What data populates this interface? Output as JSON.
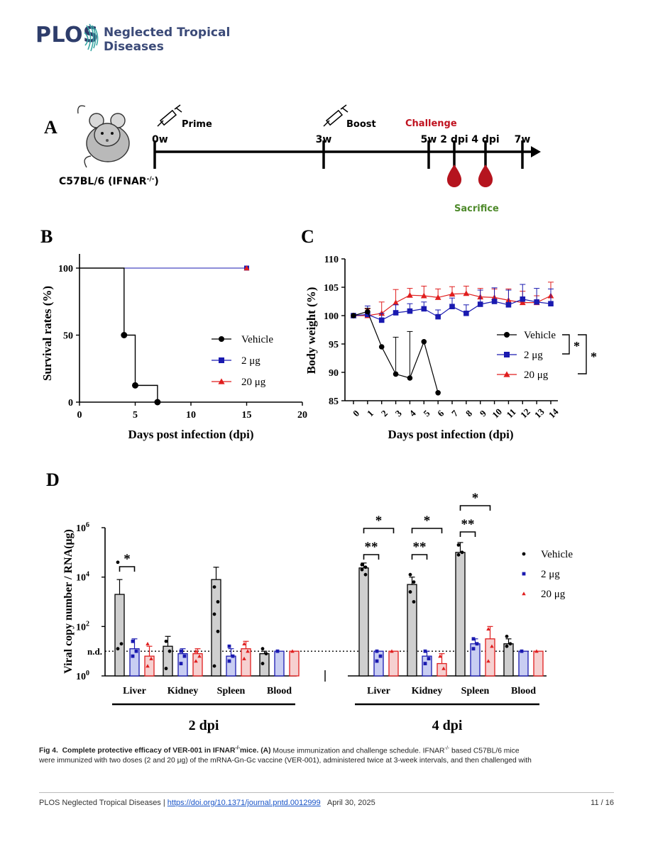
{
  "header": {
    "logo_text": "PLOS",
    "journal_line1": "Neglected Tropical",
    "journal_line2": "Diseases"
  },
  "panelA": {
    "label": "A",
    "mouse_label": "C57BL/6 (IFNAR",
    "mouse_label_sup": "-/-",
    "mouse_label_close": ")",
    "events": [
      {
        "time": "0w",
        "label": "Prime"
      },
      {
        "time": "3w",
        "label": "Boost"
      },
      {
        "time": "5w",
        "label": ""
      },
      {
        "time": "2 dpi",
        "label": ""
      },
      {
        "time": "4 dpi",
        "label": ""
      },
      {
        "time": "7w",
        "label": ""
      }
    ],
    "challenge_label": "Challenge",
    "sacrifice_label": "Sacrifice",
    "colors": {
      "challenge": "#c0121f",
      "sacrifice": "#4e8a2b",
      "drop": "#b5141e"
    }
  },
  "panelB": {
    "label": "B",
    "chart_data": {
      "type": "line",
      "xlabel": "Days post infection (dpi)",
      "ylabel": "Survival rates (%)",
      "xlim": [
        0,
        20
      ],
      "ylim": [
        0,
        100
      ],
      "xticks": [
        "0",
        "5",
        "10",
        "15",
        "20"
      ],
      "yticks": [
        "0",
        "50",
        "100"
      ],
      "series": [
        {
          "name": "Vehicle",
          "color": "#000000",
          "marker": "circle",
          "x": [
            0,
            4,
            4,
            5,
            5,
            7,
            7
          ],
          "y": [
            100,
            100,
            50,
            50,
            12.5,
            12.5,
            0
          ],
          "points_x": [
            4,
            5,
            7
          ],
          "points_y": [
            50,
            12.5,
            0
          ]
        },
        {
          "name": "2 μg",
          "color": "#1a1ab0",
          "marker": "square",
          "x": [
            0,
            15
          ],
          "y": [
            100,
            100
          ],
          "points_x": [
            15
          ],
          "points_y": [
            100
          ]
        },
        {
          "name": "20 μg",
          "color": "#e01e1e",
          "marker": "triangle",
          "x": [
            0,
            15
          ],
          "y": [
            100,
            100
          ],
          "points_x": [
            15
          ],
          "points_y": [
            100
          ]
        }
      ],
      "legend_position": "right"
    }
  },
  "panelC": {
    "label": "C",
    "chart_data": {
      "type": "line",
      "xlabel": "Days post infection (dpi)",
      "ylabel": "Body weight (%)",
      "ylim": [
        85,
        110
      ],
      "yticks": [
        "85",
        "90",
        "95",
        "100",
        "105",
        "110"
      ],
      "categories": [
        "0",
        "1",
        "2",
        "3",
        "4",
        "5",
        "6",
        "7",
        "8",
        "9",
        "10",
        "11",
        "12",
        "13",
        "14"
      ],
      "series": [
        {
          "name": "Vehicle",
          "color": "#000000",
          "marker": "circle",
          "x": [
            0,
            1,
            2,
            3,
            4,
            5,
            6
          ],
          "y": [
            100,
            100.7,
            94.5,
            89.7,
            89,
            95.4,
            86.4
          ],
          "err": [
            0,
            0.6,
            0,
            6.5,
            8.2,
            0,
            0
          ]
        },
        {
          "name": "2 μg",
          "color": "#1a1ab0",
          "marker": "square",
          "x": [
            0,
            1,
            2,
            3,
            4,
            5,
            6,
            7,
            8,
            9,
            10,
            11,
            12,
            13,
            14
          ],
          "y": [
            100,
            100.2,
            99.2,
            100.5,
            100.8,
            101.2,
            99.8,
            101.6,
            100.4,
            102,
            102.5,
            101.9,
            102.9,
            102.4,
            102.1
          ],
          "err": [
            0,
            1.5,
            1.2,
            1.4,
            1.3,
            1.2,
            1.2,
            1.5,
            1.5,
            2.5,
            2.4,
            2.6,
            2.6,
            2.4,
            2.6
          ]
        },
        {
          "name": "20 μg",
          "color": "#e01e1e",
          "marker": "triangle",
          "x": [
            0,
            1,
            2,
            3,
            4,
            5,
            6,
            7,
            8,
            9,
            10,
            11,
            12,
            13,
            14
          ],
          "y": [
            100,
            100,
            100.4,
            102.3,
            103.6,
            103.5,
            103.2,
            103.8,
            103.9,
            103.3,
            103.2,
            102.7,
            102.3,
            102.3,
            103.5
          ],
          "err": [
            0,
            1.2,
            2.0,
            2.3,
            1.2,
            1.7,
            1.5,
            1.3,
            1.3,
            1.5,
            1.5,
            2.0,
            2.0,
            1.2,
            2.4
          ]
        }
      ],
      "significance": [
        "*",
        "*"
      ],
      "legend_position": "right"
    }
  },
  "panelD": {
    "label": "D",
    "chart_data": {
      "type": "bar",
      "ylabel": "Viral copy number / RNA(μg)",
      "ylog": true,
      "ylim_exp": [
        0,
        6
      ],
      "yticks": [
        {
          "exp": 0,
          "label": "10",
          "sup": "0"
        },
        {
          "exp": 2,
          "label": "10",
          "sup": "2"
        },
        {
          "exp": 4,
          "label": "10",
          "sup": "4"
        },
        {
          "exp": 6,
          "label": "10",
          "sup": "6"
        }
      ],
      "nd_label": "n.d.",
      "nd_exp": 1.0,
      "groups": [
        {
          "timepoint": "2 dpi",
          "tissues": [
            {
              "name": "Liver",
              "values": [
                3.3,
                1.1,
                0.8
              ],
              "err": [
                0.6,
                0.4,
                0.4
              ],
              "pts": [
                [
                  4.6,
                  1.3,
                  1.1
                ],
                [
                  1.4,
                  1.0,
                  0.8
                ],
                [
                  1.3,
                  0.7,
                  0.4
                ]
              ]
            },
            {
              "name": "Kidney",
              "values": [
                1.2,
                0.9,
                0.9
              ],
              "err": [
                0.4,
                0.2,
                0.2
              ],
              "pts": [
                [
                  1.4,
                  1.0,
                  0.3
                ],
                [
                  1.0,
                  0.8,
                  0.5
                ],
                [
                  1.0,
                  0.8,
                  0.6
                ]
              ]
            },
            {
              "name": "Spleen",
              "values": [
                3.9,
                0.8,
                1.1
              ],
              "err": [
                0.5,
                0.3,
                0.3
              ],
              "pts": [
                [
                  3.6,
                  3.0,
                  2.5,
                  1.8,
                  0.4
                ],
                [
                  1.2,
                  0.8,
                  0.6
                ],
                [
                  1.3,
                  1.0,
                  0.7
                ]
              ]
            },
            {
              "name": "Blood",
              "values": [
                0.9,
                1.0,
                1.0
              ],
              "err": [
                0.1,
                0,
                0
              ],
              "pts": [
                [
                  1.1,
                  0.9,
                  0.5
                ],
                [
                  1.0
                ],
                [
                  1.0
                ]
              ]
            }
          ]
        },
        {
          "timepoint": "4 dpi",
          "tissues": [
            {
              "name": "Liver",
              "values": [
                4.37,
                1.0,
                1.0
              ],
              "err": [
                0.2,
                0,
                0
              ],
              "pts": [
                [
                  4.5,
                  4.4,
                  4.3,
                  4.1
                ],
                [
                  1.0,
                  0.8,
                  0.6
                ],
                [
                  1.0
                ]
              ]
            },
            {
              "name": "Kidney",
              "values": [
                3.7,
                0.8,
                0.5
              ],
              "err": [
                0.3,
                0.2,
                0.4
              ],
              "pts": [
                [
                  4.1,
                  3.8,
                  3.4,
                  3.0
                ],
                [
                  1.0,
                  0.7,
                  0.5
                ],
                [
                  0.8,
                  0.3
                ]
              ]
            },
            {
              "name": "Spleen",
              "values": [
                5.0,
                1.3,
                1.5
              ],
              "err": [
                0.4,
                0.2,
                0.5
              ],
              "pts": [
                [
                  5.3,
                  5.0,
                  4.9
                ],
                [
                  1.5,
                  1.3,
                  1.1
                ],
                [
                  1.9,
                  1.2,
                  0.6
                ]
              ]
            },
            {
              "name": "Blood",
              "values": [
                1.3,
                1.0,
                1.0
              ],
              "err": [
                0.2,
                0,
                0
              ],
              "pts": [
                [
                  1.6,
                  1.3,
                  1.2
                ],
                [
                  1.0
                ],
                [
                  1.0
                ]
              ]
            }
          ]
        }
      ],
      "series": [
        {
          "name": "Vehicle",
          "color": "#000000",
          "fill": "#cfcfcf"
        },
        {
          "name": "2 μg",
          "color": "#1a1ab0",
          "fill": "#c8cdf2"
        },
        {
          "name": "20 μg",
          "color": "#e01e1e",
          "fill": "#f6d0d0"
        }
      ],
      "significance": [
        {
          "group": 0,
          "tissue": 0,
          "label": "*"
        },
        {
          "group": 1,
          "tissue": 0,
          "labels": [
            "**",
            "*"
          ]
        },
        {
          "group": 1,
          "tissue": 1,
          "labels": [
            "**",
            "*"
          ]
        },
        {
          "group": 1,
          "tissue": 2,
          "labels": [
            "**",
            "*"
          ]
        }
      ],
      "legend_position": "right"
    }
  },
  "caption": {
    "fig_label": "Fig 4.",
    "title": "Complete protective efficacy of VER-001 in IFNAR",
    "title_sup": "-/-",
    "title_end": "mice.",
    "panel_ref": "(A)",
    "text1": " Mouse immunization and challenge schedule. IFNAR",
    "text1_sup": "-/-",
    "text2": " based C57BL/6 mice",
    "line2": "were immunized with two doses (2 and 20 μg) of the mRNA-Gn-Gc vaccine (VER-001), administered twice at 3-week intervals, and then challenged with"
  },
  "footer": {
    "journal": "PLOS Neglected Tropical Diseases | ",
    "doi": "https://doi.org/10.1371/journal.pntd.0012999",
    "date": "April 30, 2025",
    "page": "11 / 16"
  }
}
